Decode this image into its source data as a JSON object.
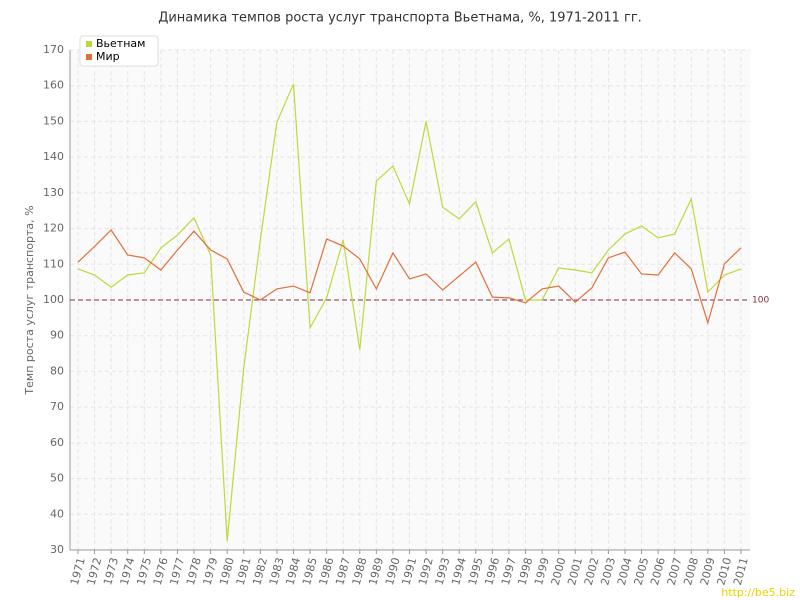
{
  "chart_data": {
    "type": "line",
    "title": "Динамика темпов роста услуг транспорта Вьетнама, %, 1971-2011 гг.",
    "y_label": "Темп роста услуг транспорта, %",
    "categories": [
      "1971",
      "1972",
      "1973",
      "1974",
      "1975",
      "1976",
      "1977",
      "1978",
      "1979",
      "1980",
      "1981",
      "1982",
      "1983",
      "1984",
      "1985",
      "1986",
      "1987",
      "1988",
      "1989",
      "1990",
      "1991",
      "1992",
      "1993",
      "1994",
      "1995",
      "1996",
      "1997",
      "1998",
      "1999",
      "2000",
      "2001",
      "2002",
      "2003",
      "2004",
      "2005",
      "2006",
      "2007",
      "2008",
      "2009",
      "2010",
      "2011"
    ],
    "series": [
      {
        "name": "Вьетнам",
        "color": "#bcd93c",
        "values": [
          108.7,
          107,
          103.6,
          107,
          107.6,
          114.6,
          118.2,
          123,
          112.6,
          32.5,
          81,
          116.8,
          149.8,
          160.5,
          92.2,
          100.6,
          116.8,
          86,
          133.3,
          137.5,
          126.9,
          150,
          126,
          122.7,
          127.5,
          113.2,
          117.1,
          100,
          100,
          109,
          108.4,
          107.6,
          114,
          118.5,
          120.7,
          117.4,
          118.5,
          128.3,
          102.2,
          107,
          108.7
        ]
      },
      {
        "name": "Мир",
        "color": "#e0703a",
        "values": [
          110.6,
          115,
          119.6,
          112.6,
          111.8,
          108.4,
          114,
          119.3,
          114,
          111.5,
          102.2,
          100,
          103.1,
          103.9,
          102,
          117.1,
          115.1,
          111.5,
          103.1,
          113.2,
          105.9,
          107.3,
          102.8,
          106.7,
          110.6,
          100.8,
          100.6,
          99.2,
          103.1,
          103.9,
          99.4,
          103.4,
          111.8,
          113.4,
          107.3,
          107,
          113.2,
          108.7,
          93.6,
          110.1,
          114.6
        ]
      }
    ],
    "reference_line": 100,
    "ylim": [
      30,
      170
    ],
    "yticks": [
      30,
      40,
      50,
      60,
      70,
      80,
      90,
      100,
      110,
      120,
      130,
      140,
      150,
      160,
      170
    ],
    "grid": true,
    "legend": "top-left",
    "watermark": "http://be5.biz"
  }
}
